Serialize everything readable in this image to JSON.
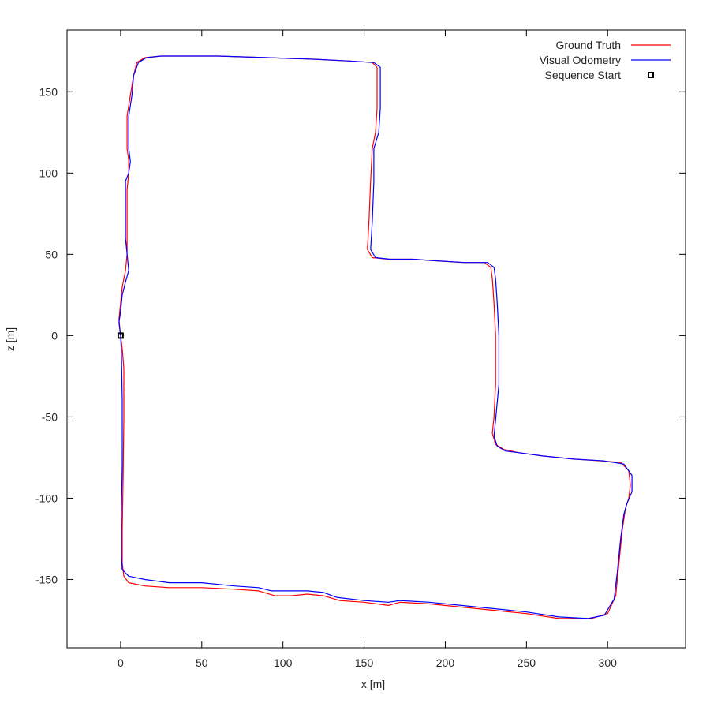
{
  "chart_data": {
    "type": "line",
    "xlabel": "x [m]",
    "ylabel": "z [m]",
    "xlim": [
      -33,
      348
    ],
    "ylim": [
      -192,
      188
    ],
    "xticks": [
      0,
      50,
      100,
      150,
      200,
      250,
      300
    ],
    "yticks": [
      -150,
      -100,
      -50,
      0,
      50,
      100,
      150
    ],
    "legend_position": "top-right",
    "grid": false,
    "series": [
      {
        "name": "Ground Truth",
        "color": "#ff0000",
        "points": [
          [
            0,
            0
          ],
          [
            1,
            -8
          ],
          [
            2,
            -20
          ],
          [
            2,
            -50
          ],
          [
            1.5,
            -90
          ],
          [
            1,
            -120
          ],
          [
            1,
            -140
          ],
          [
            2,
            -148
          ],
          [
            5,
            -152
          ],
          [
            15,
            -154
          ],
          [
            30,
            -155
          ],
          [
            50,
            -155
          ],
          [
            70,
            -156
          ],
          [
            85,
            -157
          ],
          [
            95,
            -160
          ],
          [
            105,
            -160
          ],
          [
            115,
            -159
          ],
          [
            125,
            -160
          ],
          [
            135,
            -163
          ],
          [
            150,
            -164
          ],
          [
            165,
            -166
          ],
          [
            172,
            -164
          ],
          [
            190,
            -165
          ],
          [
            210,
            -167
          ],
          [
            230,
            -169
          ],
          [
            250,
            -171
          ],
          [
            270,
            -174
          ],
          [
            290,
            -174
          ],
          [
            300,
            -171
          ],
          [
            305,
            -160
          ],
          [
            307,
            -140
          ],
          [
            309,
            -120
          ],
          [
            311,
            -106
          ],
          [
            313,
            -100
          ],
          [
            314,
            -92
          ],
          [
            313,
            -83
          ],
          [
            308,
            -78
          ],
          [
            295,
            -77
          ],
          [
            280,
            -76
          ],
          [
            260,
            -74
          ],
          [
            245,
            -72
          ],
          [
            236,
            -70
          ],
          [
            231,
            -67
          ],
          [
            229,
            -60
          ],
          [
            230,
            -50
          ],
          [
            231,
            -30
          ],
          [
            231,
            0
          ],
          [
            230,
            20
          ],
          [
            229,
            35
          ],
          [
            228,
            42
          ],
          [
            224,
            45
          ],
          [
            210,
            45
          ],
          [
            195,
            46
          ],
          [
            180,
            47
          ],
          [
            165,
            47
          ],
          [
            155,
            48
          ],
          [
            152,
            53
          ],
          [
            153,
            70
          ],
          [
            154,
            95
          ],
          [
            155,
            115
          ],
          [
            157,
            125
          ],
          [
            158,
            140
          ],
          [
            158,
            155
          ],
          [
            158,
            165
          ],
          [
            155,
            168
          ],
          [
            140,
            169
          ],
          [
            120,
            170
          ],
          [
            90,
            171
          ],
          [
            60,
            172
          ],
          [
            40,
            172
          ],
          [
            25,
            172
          ],
          [
            15,
            171
          ],
          [
            10,
            168
          ],
          [
            8,
            160
          ],
          [
            6,
            148
          ],
          [
            4,
            135
          ],
          [
            4,
            115
          ],
          [
            5,
            108
          ],
          [
            5,
            100
          ],
          [
            4,
            90
          ],
          [
            4,
            70
          ],
          [
            4,
            50
          ],
          [
            3,
            40
          ],
          [
            1,
            30
          ],
          [
            0,
            20
          ],
          [
            -1,
            10
          ],
          [
            0,
            0
          ]
        ]
      },
      {
        "name": "Visual Odometry",
        "color": "#0000ff",
        "points": [
          [
            0,
            0
          ],
          [
            0.5,
            -10
          ],
          [
            1,
            -40
          ],
          [
            1,
            -80
          ],
          [
            0.5,
            -110
          ],
          [
            0.5,
            -135
          ],
          [
            1,
            -144
          ],
          [
            5,
            -148
          ],
          [
            15,
            -150
          ],
          [
            30,
            -152
          ],
          [
            50,
            -152
          ],
          [
            70,
            -154
          ],
          [
            85,
            -155
          ],
          [
            93,
            -157
          ],
          [
            105,
            -157
          ],
          [
            115,
            -157
          ],
          [
            125,
            -158
          ],
          [
            133,
            -161
          ],
          [
            150,
            -163
          ],
          [
            165,
            -164
          ],
          [
            172,
            -163
          ],
          [
            190,
            -164
          ],
          [
            210,
            -166
          ],
          [
            230,
            -168
          ],
          [
            250,
            -170
          ],
          [
            270,
            -173
          ],
          [
            288,
            -174
          ],
          [
            298,
            -172
          ],
          [
            304,
            -162
          ],
          [
            306,
            -145
          ],
          [
            308,
            -125
          ],
          [
            310,
            -110
          ],
          [
            312,
            -103
          ],
          [
            315,
            -96
          ],
          [
            315,
            -86
          ],
          [
            310,
            -79
          ],
          [
            297,
            -77
          ],
          [
            280,
            -76
          ],
          [
            260,
            -74
          ],
          [
            245,
            -72
          ],
          [
            237,
            -71
          ],
          [
            232,
            -68
          ],
          [
            230,
            -62
          ],
          [
            231,
            -52
          ],
          [
            233,
            -30
          ],
          [
            233,
            0
          ],
          [
            232,
            20
          ],
          [
            231,
            35
          ],
          [
            230,
            42
          ],
          [
            226,
            45
          ],
          [
            212,
            45
          ],
          [
            195,
            46
          ],
          [
            180,
            47
          ],
          [
            166,
            47
          ],
          [
            157,
            48
          ],
          [
            154,
            53
          ],
          [
            155,
            70
          ],
          [
            156,
            95
          ],
          [
            156,
            115
          ],
          [
            159,
            125
          ],
          [
            160,
            140
          ],
          [
            160,
            155
          ],
          [
            160,
            165
          ],
          [
            156,
            168
          ],
          [
            140,
            169
          ],
          [
            120,
            170
          ],
          [
            90,
            171
          ],
          [
            60,
            172
          ],
          [
            40,
            172
          ],
          [
            25,
            172
          ],
          [
            16,
            171
          ],
          [
            11,
            168
          ],
          [
            8,
            160
          ],
          [
            7,
            148
          ],
          [
            5,
            135
          ],
          [
            5,
            115
          ],
          [
            6,
            107
          ],
          [
            5,
            100
          ],
          [
            3,
            95
          ],
          [
            3,
            70
          ],
          [
            3,
            60
          ],
          [
            5,
            40
          ],
          [
            3,
            33
          ],
          [
            1,
            25
          ],
          [
            0,
            15
          ],
          [
            -1,
            8
          ],
          [
            0,
            0
          ]
        ]
      }
    ],
    "sequence_start": {
      "name": "Sequence Start",
      "x": 0,
      "z": 0
    }
  }
}
